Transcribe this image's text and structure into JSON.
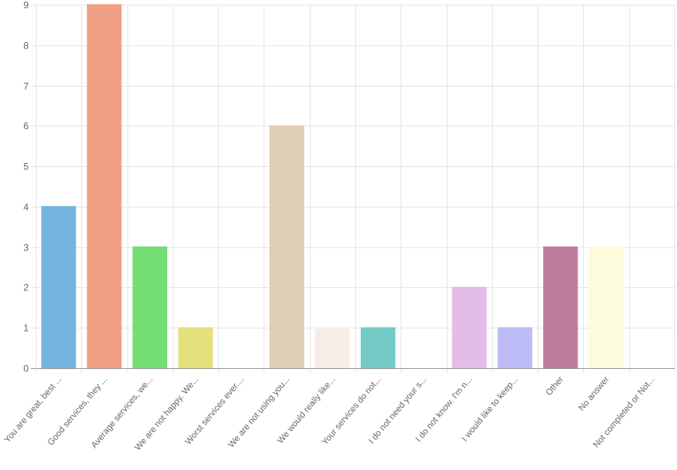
{
  "chart_data": {
    "type": "bar",
    "categories": [
      "You are great, best ...",
      "Good services, they ...",
      "Average services, we...",
      "We are not happy. We...",
      "Worst services ever....",
      "We are not using you...",
      "We would really like...",
      "Your services do not...",
      "I do not need your s...",
      "I do not know. I'm n...",
      "I would like to keep...",
      "Other",
      "No answer",
      "Not completed or Not..."
    ],
    "values": [
      4,
      9,
      3,
      1,
      0,
      6,
      1,
      1,
      0,
      2,
      1,
      3,
      3,
      0
    ],
    "colors": [
      "#74b3df",
      "#f0a084",
      "#74dd74",
      "#e4e07c",
      "#b0b0b0",
      "#dfcdb4",
      "#f8ece6",
      "#74cbc6",
      "#b0b0b0",
      "#e3bde8",
      "#bdbbf6",
      "#be7d9c",
      "#fcfcdc",
      "#b0b0b0"
    ],
    "yticks": [
      0,
      1,
      2,
      3,
      4,
      5,
      6,
      7,
      8,
      9
    ],
    "ylim": [
      0,
      9
    ],
    "grid": true
  }
}
